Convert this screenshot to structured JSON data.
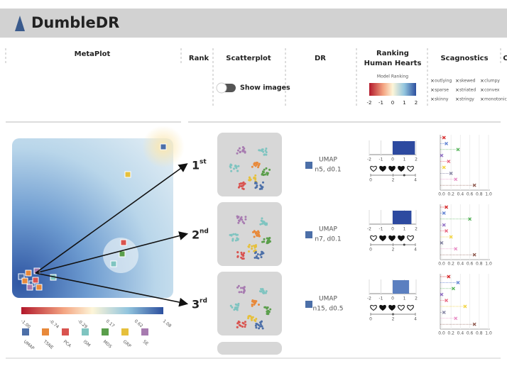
{
  "header": {
    "title": "DumbleDR"
  },
  "columns": [
    "MetaPlot",
    "Rank",
    "Scatterplot",
    "DR",
    "Ranking",
    "Human Hearts",
    "Scagnostics",
    "C"
  ],
  "controls": {
    "show_images": "Show images"
  },
  "model_ranking": {
    "label": "Model Ranking",
    "ticks": [
      -2,
      -1,
      0,
      1,
      2
    ],
    "lim": [
      -2,
      2
    ]
  },
  "hearts_axis": {
    "ticks": [
      0,
      2,
      4
    ],
    "lim": [
      0,
      4
    ]
  },
  "scagnostics": {
    "measures": [
      "outlying",
      "skewed",
      "clumpy",
      "sparse",
      "striated",
      "convex",
      "skinny",
      "stringy",
      "monotonic"
    ],
    "colors": [
      "#d62728",
      "#5b7fd1",
      "#4caf50",
      "#8e6cc4",
      "#e8607a",
      "#f2d33c",
      "#7f7f9f",
      "#e78ac3",
      "#8c564b"
    ],
    "lim": [
      0,
      1
    ],
    "ticks": [
      {
        "value": 0,
        "label": "0.0"
      },
      0.2,
      0.4,
      0.6,
      0.8,
      {
        "value": 1,
        "label": "1.0"
      }
    ]
  },
  "metaplot": {
    "colorbar_ticks": [
      "-1.00",
      "-0.74",
      "-0.29",
      "0.17",
      "0.62",
      "1.08"
    ],
    "methods": [
      "UMAP",
      "TSNE",
      "PCA",
      "ISM",
      "MDS",
      "GRP",
      "SE"
    ],
    "method_colors": [
      "#4c6fa8",
      "#e8893a",
      "#d9534f",
      "#7fc4c0",
      "#5a9e4b",
      "#e6c03c",
      "#a77bb0"
    ]
  },
  "rows": [
    {
      "rank": "1",
      "suffix": "st",
      "method": "UMAP",
      "params": "n5, d0.1",
      "model_ranking": 1.9,
      "hearts": 3,
      "scagnostics": [
        0.05,
        0.1,
        0.35,
        0.0,
        0.15,
        0.05,
        0.2,
        0.3,
        0.7
      ]
    },
    {
      "rank": "2",
      "suffix": "nd",
      "method": "UMAP",
      "params": "n7, d0.1",
      "model_ranking": 1.6,
      "hearts": 3,
      "scagnostics": [
        0.1,
        0.05,
        0.6,
        0.05,
        0.1,
        0.2,
        0.0,
        0.3,
        0.7
      ]
    },
    {
      "rank": "3",
      "suffix": "rd",
      "method": "UMAP",
      "params": "n15, d0.5",
      "model_ranking": 1.4,
      "hearts": 2,
      "scagnostics": [
        0.15,
        0.35,
        0.25,
        0.0,
        0.1,
        0.5,
        0.05,
        0.3,
        0.7
      ]
    }
  ]
}
